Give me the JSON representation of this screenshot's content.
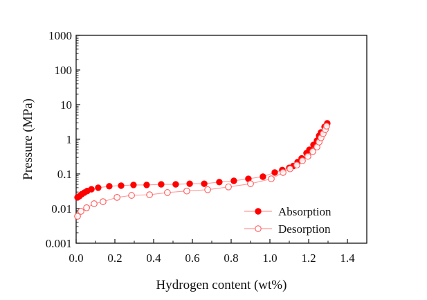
{
  "chart_data": {
    "type": "scatter",
    "title": "",
    "xlabel": "Hydrogen content (wt%)",
    "ylabel": "Pressure (MPa)",
    "xlim": [
      0.0,
      1.5
    ],
    "ylim": [
      0.001,
      1000
    ],
    "yscale": "log",
    "x_ticks": [
      "0.0",
      "0.2",
      "0.4",
      "0.6",
      "0.8",
      "1.0",
      "1.2",
      "1.4"
    ],
    "x_tick_values": [
      0.0,
      0.2,
      0.4,
      0.6,
      0.8,
      1.0,
      1.2,
      1.4
    ],
    "y_ticks": [
      "1000",
      "100",
      "10",
      "1",
      "0.1",
      "0.01",
      "0.001"
    ],
    "y_tick_values": [
      1000,
      100,
      10,
      1,
      0.1,
      0.01,
      0.001
    ],
    "grid": false,
    "legend_position": "lower-right",
    "series": [
      {
        "name": "Absorption",
        "marker": "filled-circle",
        "color": "#ff0000",
        "line_color": "#ff9a9a",
        "x": [
          0.007,
          0.018,
          0.029,
          0.043,
          0.057,
          0.079,
          0.114,
          0.171,
          0.232,
          0.296,
          0.364,
          0.439,
          0.514,
          0.586,
          0.661,
          0.739,
          0.814,
          0.889,
          0.964,
          1.025,
          1.064,
          1.1,
          1.121,
          1.143,
          1.164,
          1.189,
          1.204,
          1.225,
          1.243,
          1.254,
          1.264,
          1.282,
          1.296
        ],
        "y": [
          0.021,
          0.023,
          0.026,
          0.029,
          0.032,
          0.036,
          0.04,
          0.044,
          0.046,
          0.048,
          0.048,
          0.05,
          0.05,
          0.052,
          0.052,
          0.058,
          0.063,
          0.072,
          0.083,
          0.11,
          0.13,
          0.15,
          0.17,
          0.22,
          0.28,
          0.4,
          0.5,
          0.69,
          0.91,
          1.26,
          1.58,
          2.29,
          2.88
        ]
      },
      {
        "name": "Desorption",
        "marker": "open-circle",
        "color": "#ff0000",
        "line_color": "#ff9a9a",
        "x": [
          0.007,
          0.025,
          0.054,
          0.093,
          0.139,
          0.211,
          0.286,
          0.379,
          0.471,
          0.571,
          0.679,
          0.786,
          0.9,
          1.007,
          1.068,
          1.104,
          1.139,
          1.168,
          1.196,
          1.221,
          1.243,
          1.254,
          1.264,
          1.275,
          1.286,
          1.293
        ],
        "y": [
          0.006,
          0.0083,
          0.0105,
          0.0138,
          0.0158,
          0.021,
          0.024,
          0.025,
          0.029,
          0.032,
          0.035,
          0.042,
          0.052,
          0.072,
          0.11,
          0.14,
          0.18,
          0.24,
          0.32,
          0.44,
          0.6,
          0.83,
          1.1,
          1.45,
          1.9,
          2.4
        ]
      }
    ]
  }
}
